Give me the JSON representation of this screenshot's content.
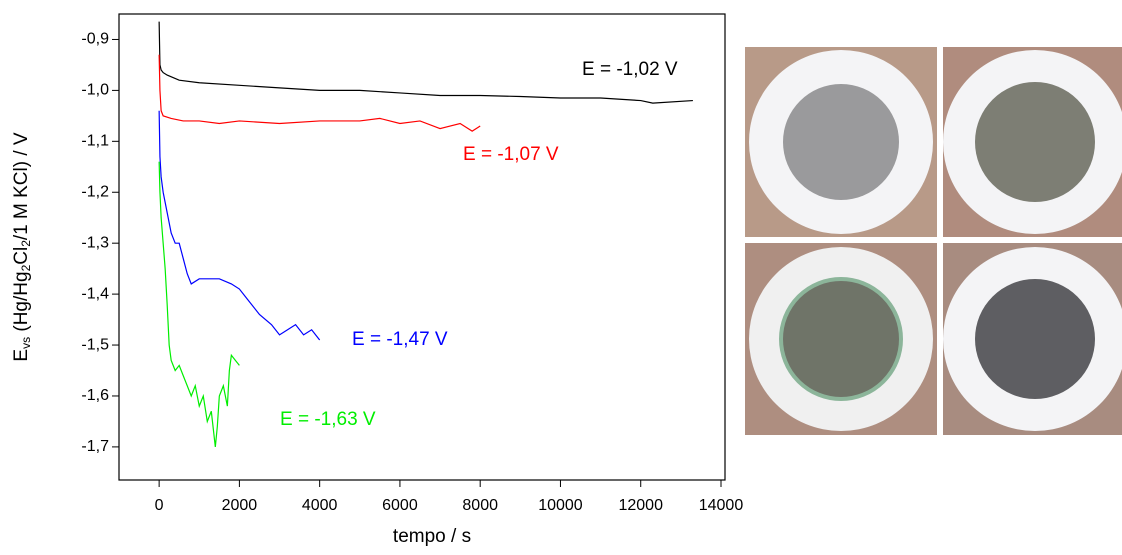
{
  "chart_data": {
    "type": "line",
    "xlabel": "tempo / s",
    "ylabel": [
      {
        "text": "E"
      },
      {
        "text": "vs",
        "sub": true
      },
      {
        "text": " (Hg/Hg"
      },
      {
        "text": "2",
        "sub": true
      },
      {
        "text": "Cl"
      },
      {
        "text": "2",
        "sub": true
      },
      {
        "text": "/1 M KCl) / V"
      }
    ],
    "xlim": [
      -1000,
      14100
    ],
    "ylim": [
      -1.765,
      -0.85
    ],
    "xticks": [
      0,
      2000,
      4000,
      6000,
      8000,
      10000,
      12000,
      14000
    ],
    "yticks": [
      {
        "value": -0.9,
        "label": "-0,9"
      },
      {
        "value": -1.0,
        "label": "-1,0"
      },
      {
        "value": -1.1,
        "label": "-1,1"
      },
      {
        "value": -1.2,
        "label": "-1,2"
      },
      {
        "value": -1.3,
        "label": "-1,3"
      },
      {
        "value": -1.4,
        "label": "-1,4"
      },
      {
        "value": -1.5,
        "label": "-1,5"
      },
      {
        "value": -1.6,
        "label": "-1,6"
      },
      {
        "value": -1.7,
        "label": "-1,7"
      }
    ],
    "series": [
      {
        "name": "E = -1,02 V",
        "color": "#000000",
        "x": [
          0,
          20,
          50,
          100,
          200,
          500,
          1000,
          2000,
          3000,
          4000,
          5000,
          6000,
          7000,
          8000,
          9000,
          10000,
          11000,
          12000,
          12300,
          13300
        ],
        "values": [
          -0.865,
          -0.95,
          -0.96,
          -0.965,
          -0.97,
          -0.98,
          -0.985,
          -0.99,
          -0.995,
          -1.0,
          -1.0,
          -1.005,
          -1.01,
          -1.01,
          -1.012,
          -1.015,
          -1.015,
          -1.02,
          -1.025,
          -1.02
        ]
      },
      {
        "name": "E = -1,07 V",
        "color": "#ff0000",
        "x": [
          0,
          20,
          50,
          100,
          300,
          600,
          1000,
          1500,
          2000,
          3000,
          4000,
          5000,
          5500,
          6000,
          6500,
          7000,
          7500,
          7800,
          8000
        ],
        "values": [
          -0.93,
          -1.0,
          -1.04,
          -1.05,
          -1.055,
          -1.06,
          -1.06,
          -1.065,
          -1.06,
          -1.065,
          -1.06,
          -1.06,
          -1.055,
          -1.065,
          -1.06,
          -1.075,
          -1.065,
          -1.08,
          -1.07
        ]
      },
      {
        "name": "E = -1,47 V",
        "color": "#0000ff",
        "x": [
          0,
          20,
          50,
          100,
          200,
          300,
          400,
          500,
          600,
          700,
          800,
          1000,
          1200,
          1500,
          1800,
          2000,
          2200,
          2500,
          2800,
          3000,
          3200,
          3400,
          3600,
          3800,
          4000
        ],
        "values": [
          -1.04,
          -1.13,
          -1.17,
          -1.2,
          -1.24,
          -1.28,
          -1.3,
          -1.3,
          -1.33,
          -1.36,
          -1.38,
          -1.37,
          -1.37,
          -1.37,
          -1.38,
          -1.39,
          -1.41,
          -1.44,
          -1.46,
          -1.48,
          -1.47,
          -1.46,
          -1.48,
          -1.47,
          -1.49
        ]
      },
      {
        "name": "E = -1,63 V",
        "color": "#00ee00",
        "x": [
          0,
          20,
          50,
          100,
          150,
          200,
          250,
          300,
          400,
          500,
          600,
          700,
          800,
          900,
          1000,
          1100,
          1200,
          1300,
          1400,
          1450,
          1500,
          1600,
          1700,
          1750,
          1800,
          1900,
          2000
        ],
        "values": [
          -1.14,
          -1.2,
          -1.25,
          -1.3,
          -1.35,
          -1.42,
          -1.5,
          -1.53,
          -1.55,
          -1.54,
          -1.56,
          -1.58,
          -1.6,
          -1.58,
          -1.62,
          -1.6,
          -1.65,
          -1.63,
          -1.7,
          -1.66,
          -1.6,
          -1.58,
          -1.62,
          -1.55,
          -1.52,
          -1.53,
          -1.54
        ]
      }
    ]
  }
}
